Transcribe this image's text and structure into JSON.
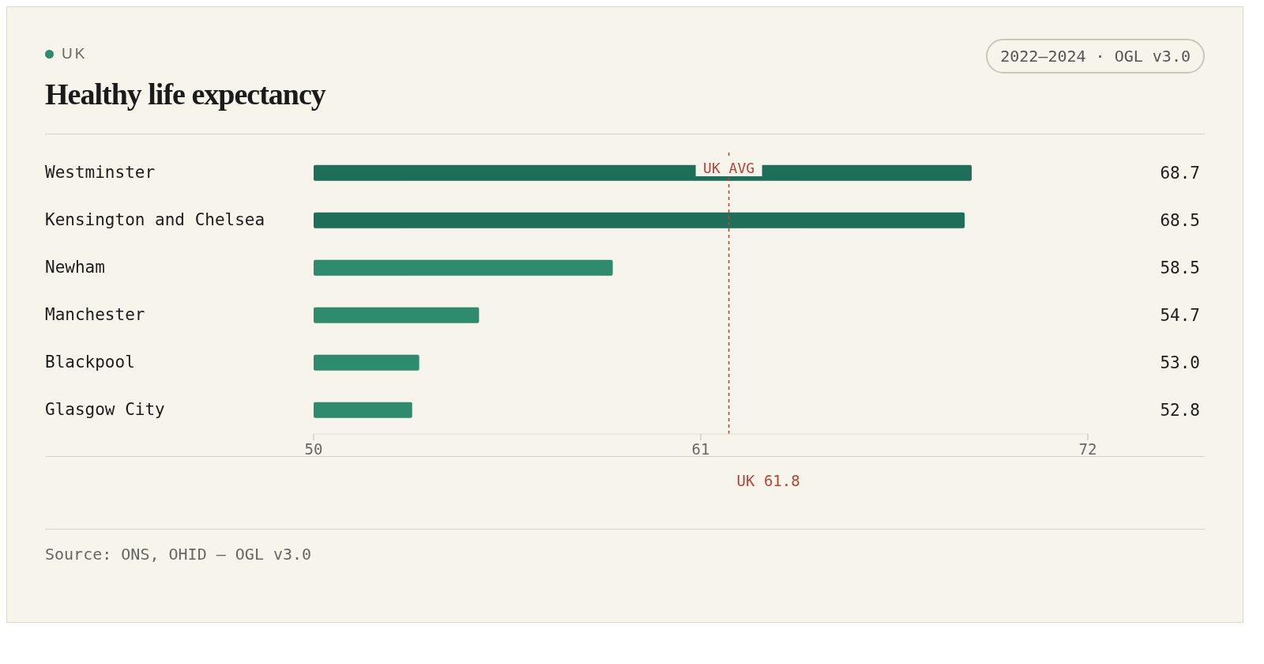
{
  "chart_data": {
    "type": "bar",
    "orientation": "horizontal",
    "subtitle": "UK",
    "title": "Healthy life expectancy",
    "annotations": [
      "2022–2024 · OGL v3.0",
      "UK 61.8",
      "Source: ONS, OHID — OGL v3.0"
    ],
    "categories": [
      "Westminster",
      "Kensington and Chelsea",
      "Newham",
      "Manchester",
      "Blackpool",
      "Glasgow City"
    ],
    "values": [
      68.7,
      68.5,
      58.5,
      54.7,
      53.0,
      52.8
    ],
    "value_labels": [
      "68.7",
      "68.5",
      "58.5",
      "54.7",
      "53.0",
      "52.8"
    ],
    "colors": [
      "#1f6e5a",
      "#1f6e5a",
      "#2e8b6e",
      "#2e8b6e",
      "#2e8b6e",
      "#2e8b6e"
    ],
    "xlim": [
      50,
      72
    ],
    "xticks": [
      50,
      61,
      72
    ],
    "ref_lines": [
      {
        "axis": "x",
        "value": 61.8,
        "label": "UK AVG",
        "color": "#b5443a",
        "line_style": "dashed"
      }
    ],
    "tick_labels": "xy"
  }
}
